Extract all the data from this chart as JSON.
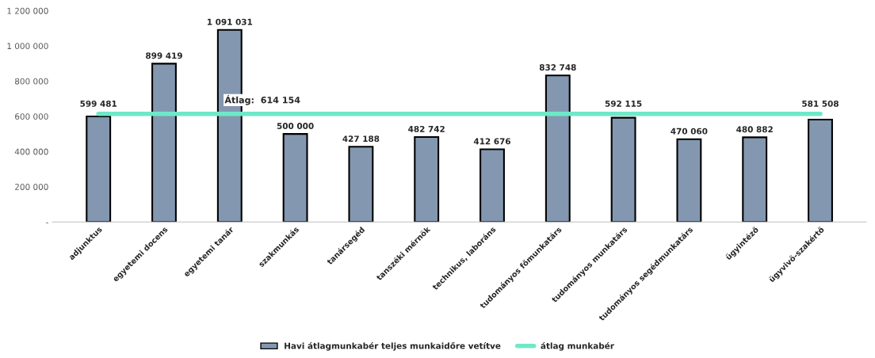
{
  "chart_data": {
    "type": "bar",
    "categories": [
      "adjunktus",
      "egyetemi docens",
      "egyetemi tanár",
      "szakmunkás",
      "tanársegéd",
      "tanszéki mérnök",
      "technikus, laboráns",
      "tudományos főmunkatárs",
      "tudományos munkatárs",
      "tudományos segédmunkatárs",
      "ügyintéző",
      "ügyvivő-szakértő"
    ],
    "series": [
      {
        "name": "Havi átlagmunkabér teljes munkaidőre vetítve",
        "color": "#8497b0",
        "values": [
          599481,
          899419,
          1091031,
          500000,
          427188,
          482742,
          412676,
          832748,
          592115,
          470060,
          480882,
          581508
        ],
        "value_labels": [
          "599 481",
          "899 419",
          "1 091 031",
          "500 000",
          "427 188",
          "482 742",
          "412 676",
          "832 748",
          "592 115",
          "470 060",
          "480 882",
          "581 508"
        ]
      },
      {
        "name": "átlag munkabér",
        "type": "line",
        "color": "#6fe8c8",
        "values": [
          614154,
          614154,
          614154,
          614154,
          614154,
          614154,
          614154,
          614154,
          614154,
          614154,
          614154,
          614154
        ]
      }
    ],
    "annotations": [
      {
        "text": "Átlag:  614 154",
        "x": "szakmunkás",
        "y": 614154
      }
    ],
    "ylim": [
      0,
      1200000
    ],
    "yticks": [
      {
        "value": 0,
        "label": "-"
      },
      {
        "value": 200000,
        "label": "200 000"
      },
      {
        "value": 400000,
        "label": "400 000"
      },
      {
        "value": 600000,
        "label": "600 000"
      },
      {
        "value": 800000,
        "label": "800 000"
      },
      {
        "value": 1000000,
        "label": "1 000 000"
      },
      {
        "value": 1200000,
        "label": "1 200 000"
      }
    ],
    "grid": false,
    "legend": "bottom"
  }
}
